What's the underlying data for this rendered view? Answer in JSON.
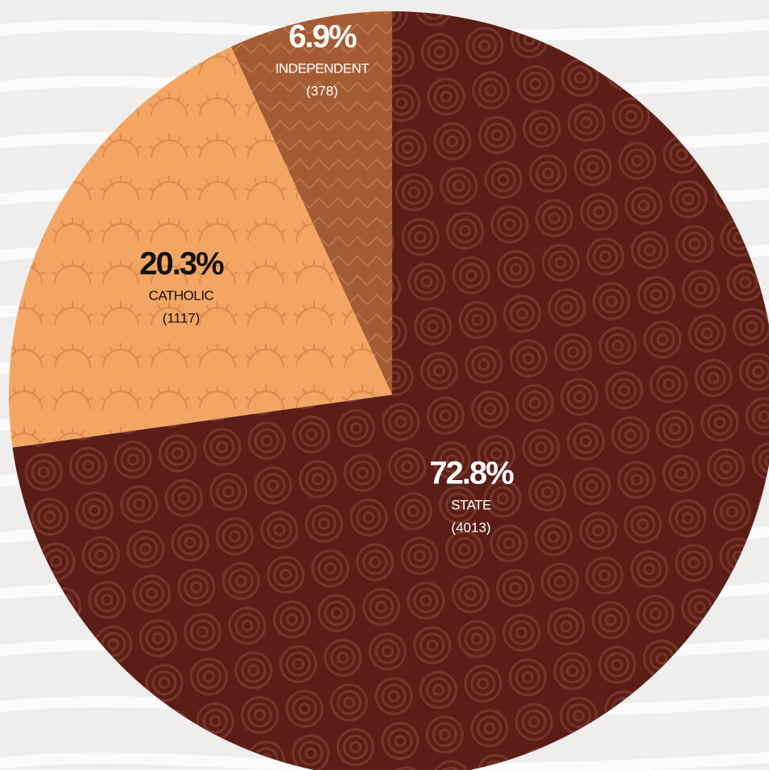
{
  "chart_data": {
    "type": "pie",
    "categories": [
      "STATE",
      "CATHOLIC",
      "INDEPENDENT"
    ],
    "values": [
      72.8,
      20.3,
      6.9
    ],
    "value_labels": [
      "72.8%",
      "20.3%",
      "6.9%"
    ],
    "counts": [
      4013,
      1117,
      378
    ],
    "count_labels": [
      "(4013)",
      "(1117)",
      "(378)"
    ],
    "colors": [
      "#5b1e17",
      "#f3a664",
      "#a55b33"
    ]
  }
}
